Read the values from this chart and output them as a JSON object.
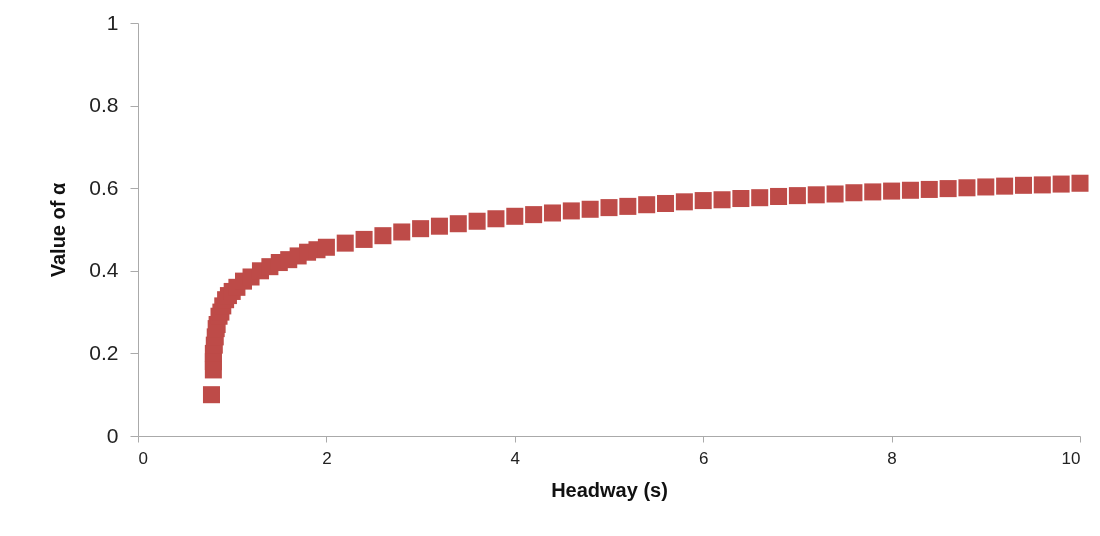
{
  "chart_data": {
    "type": "scatter",
    "xlabel": "Headway (s)",
    "ylabel": "Value of α",
    "x": [
      0.78,
      0.8,
      0.8,
      0.8,
      0.81,
      0.82,
      0.83,
      0.84,
      0.86,
      0.88,
      0.9,
      0.93,
      0.96,
      1.0,
      1.05,
      1.12,
      1.2,
      1.3,
      1.4,
      1.5,
      1.6,
      1.7,
      1.8,
      1.9,
      2.0,
      2.2,
      2.4,
      2.6,
      2.8,
      3.0,
      3.2,
      3.4,
      3.6,
      3.8,
      4.0,
      4.2,
      4.4,
      4.6,
      4.8,
      5.0,
      5.2,
      5.4,
      5.6,
      5.8,
      6.0,
      6.2,
      6.4,
      6.6,
      6.8,
      7.0,
      7.2,
      7.4,
      7.6,
      7.8,
      8.0,
      8.2,
      8.4,
      8.6,
      8.8,
      9.0,
      9.2,
      9.4,
      9.6,
      9.8,
      10.0
    ],
    "series": [
      {
        "color": "#be4b48",
        "values": [
          0.1,
          0.16,
          0.18,
          0.2,
          0.22,
          0.24,
          0.26,
          0.27,
          0.29,
          0.3,
          0.315,
          0.33,
          0.34,
          0.35,
          0.36,
          0.375,
          0.385,
          0.4,
          0.41,
          0.42,
          0.427,
          0.436,
          0.445,
          0.451,
          0.457,
          0.467,
          0.476,
          0.485,
          0.494,
          0.502,
          0.508,
          0.514,
          0.52,
          0.526,
          0.532,
          0.536,
          0.54,
          0.545,
          0.549,
          0.553,
          0.556,
          0.56,
          0.563,
          0.567,
          0.57,
          0.572,
          0.575,
          0.577,
          0.58,
          0.582,
          0.584,
          0.586,
          0.589,
          0.591,
          0.593,
          0.595,
          0.597,
          0.599,
          0.601,
          0.603,
          0.605,
          0.607,
          0.608,
          0.61,
          0.612
        ]
      }
    ],
    "xlim": [
      0,
      10
    ],
    "xticks": [
      0,
      2,
      4,
      6,
      8,
      10
    ],
    "ylim": [
      0,
      1
    ],
    "yticks": [
      0,
      0.2,
      0.4,
      0.6,
      0.8,
      1
    ],
    "marker": "square",
    "grid": false
  }
}
